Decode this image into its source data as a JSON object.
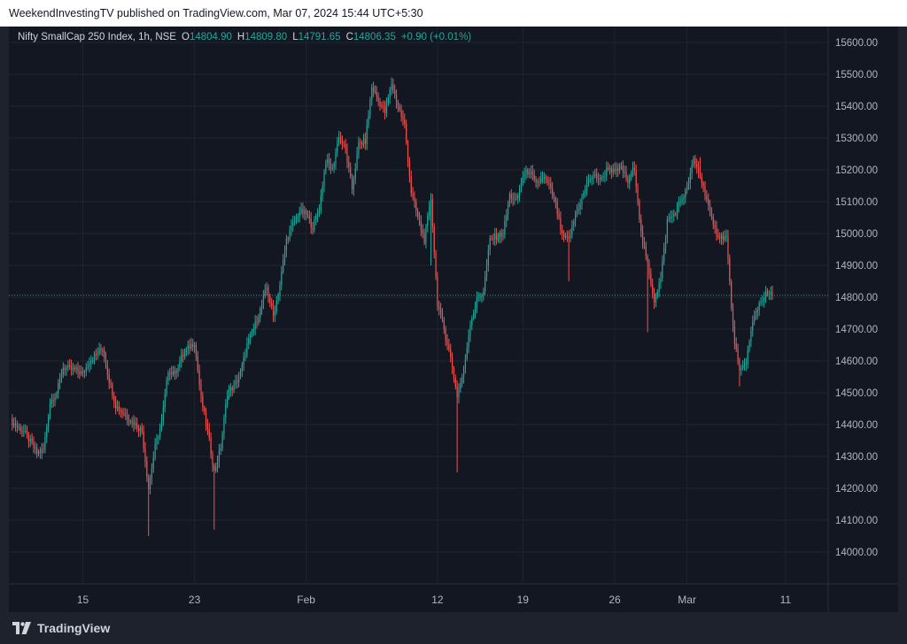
{
  "header": {
    "published_text": "WeekendInvestingTV published on TradingView.com, Mar 07, 2024 15:44 UTC+5:30"
  },
  "legend": {
    "symbol": "Nifty SmallCap 250 Index, 1h, NSE",
    "o_label": "O",
    "o_value": "14804.90",
    "h_label": "H",
    "h_value": "14809.80",
    "l_label": "L",
    "l_value": "14791.65",
    "c_label": "C",
    "c_value": "14806.35",
    "change": "+0.90 (+0.01%)"
  },
  "footer": {
    "brand": "TradingView",
    "logo_icon": "tradingview-logo-icon"
  },
  "colors": {
    "up": "#26a69a",
    "down": "#ef5350",
    "background": "#131722",
    "grid": "#1f2430",
    "price_line": "#26a69a"
  },
  "chart_data": {
    "type": "candlestick",
    "title": "Nifty SmallCap 250 Index, 1h, NSE",
    "ylim": [
      13900,
      15650
    ],
    "y_ticks": [
      "15600.00",
      "15500.00",
      "15400.00",
      "15300.00",
      "15200.00",
      "15100.00",
      "15000.00",
      "14900.00",
      "14800.00",
      "14700.00",
      "14600.00",
      "14500.00",
      "14400.00",
      "14300.00",
      "14200.00",
      "14100.00",
      "14000.00"
    ],
    "x_ticks": [
      {
        "label": "15",
        "index": 11
      },
      {
        "label": "23",
        "index": 28
      },
      {
        "label": "Feb",
        "index": 45
      },
      {
        "label": "12",
        "index": 65
      },
      {
        "label": "19",
        "index": 78
      },
      {
        "label": "26",
        "index": 92
      },
      {
        "label": "Mar",
        "index": 103
      },
      {
        "label": "11",
        "index": 118
      }
    ],
    "last_price": 14806.35,
    "grid": true,
    "anchors": [
      [
        0,
        14410
      ],
      [
        2,
        14380
      ],
      [
        4,
        14310
      ],
      [
        5,
        14320
      ],
      [
        6,
        14470
      ],
      [
        7,
        14500
      ],
      [
        8,
        14580
      ],
      [
        10,
        14570
      ],
      [
        11,
        14560
      ],
      [
        12,
        14600
      ],
      [
        14,
        14640
      ],
      [
        15,
        14540
      ],
      [
        16,
        14460
      ],
      [
        18,
        14420
      ],
      [
        20,
        14380
      ],
      [
        21,
        14200
      ],
      [
        22,
        14330
      ],
      [
        23,
        14410
      ],
      [
        24,
        14570
      ],
      [
        25,
        14560
      ],
      [
        26,
        14610
      ],
      [
        27,
        14640
      ],
      [
        28,
        14660
      ],
      [
        29,
        14480
      ],
      [
        30,
        14380
      ],
      [
        31,
        14250
      ],
      [
        32,
        14330
      ],
      [
        33,
        14500
      ],
      [
        34,
        14520
      ],
      [
        35,
        14560
      ],
      [
        36,
        14650
      ],
      [
        37,
        14700
      ],
      [
        38,
        14760
      ],
      [
        39,
        14830
      ],
      [
        40,
        14740
      ],
      [
        41,
        14840
      ],
      [
        42,
        14980
      ],
      [
        43,
        15030
      ],
      [
        44,
        15070
      ],
      [
        45,
        15060
      ],
      [
        46,
        15020
      ],
      [
        47,
        15080
      ],
      [
        48,
        15230
      ],
      [
        49,
        15200
      ],
      [
        50,
        15310
      ],
      [
        51,
        15260
      ],
      [
        52,
        15140
      ],
      [
        53,
        15280
      ],
      [
        54,
        15290
      ],
      [
        55,
        15460
      ],
      [
        56,
        15420
      ],
      [
        57,
        15380
      ],
      [
        58,
        15470
      ],
      [
        59,
        15400
      ],
      [
        60,
        15340
      ],
      [
        61,
        15130
      ],
      [
        62,
        15050
      ],
      [
        63,
        14980
      ],
      [
        64,
        15110
      ],
      [
        65,
        14780
      ],
      [
        66,
        14700
      ],
      [
        67,
        14610
      ],
      [
        68,
        14490
      ],
      [
        69,
        14570
      ],
      [
        70,
        14720
      ],
      [
        71,
        14790
      ],
      [
        72,
        14820
      ],
      [
        73,
        14980
      ],
      [
        74,
        14990
      ],
      [
        75,
        15000
      ],
      [
        76,
        15120
      ],
      [
        77,
        15100
      ],
      [
        78,
        15180
      ],
      [
        79,
        15200
      ],
      [
        80,
        15150
      ],
      [
        81,
        15180
      ],
      [
        82,
        15150
      ],
      [
        83,
        15090
      ],
      [
        84,
        14990
      ],
      [
        85,
        14980
      ],
      [
        86,
        15060
      ],
      [
        87,
        15110
      ],
      [
        88,
        15170
      ],
      [
        89,
        15180
      ],
      [
        90,
        15170
      ],
      [
        91,
        15210
      ],
      [
        92,
        15190
      ],
      [
        93,
        15210
      ],
      [
        94,
        15160
      ],
      [
        95,
        15210
      ],
      [
        96,
        15000
      ],
      [
        97,
        14900
      ],
      [
        98,
        14790
      ],
      [
        99,
        14860
      ],
      [
        100,
        15040
      ],
      [
        101,
        15060
      ],
      [
        102,
        15100
      ],
      [
        103,
        15140
      ],
      [
        104,
        15230
      ],
      [
        105,
        15180
      ],
      [
        106,
        15110
      ],
      [
        107,
        15020
      ],
      [
        108,
        14990
      ],
      [
        109,
        14990
      ],
      [
        110,
        14700
      ],
      [
        111,
        14560
      ],
      [
        112,
        14600
      ],
      [
        113,
        14720
      ],
      [
        114,
        14780
      ],
      [
        115,
        14810
      ],
      [
        116,
        14806
      ]
    ],
    "wick_extremes": [
      {
        "index": 21,
        "low": 14050
      },
      {
        "index": 31,
        "low": 14070
      },
      {
        "index": 58,
        "high": 15490
      },
      {
        "index": 64,
        "low": 14900
      },
      {
        "index": 68,
        "low": 14250
      },
      {
        "index": 85,
        "low": 14850
      },
      {
        "index": 97,
        "low": 14690
      },
      {
        "index": 105,
        "high": 15240
      },
      {
        "index": 111,
        "low": 14520
      }
    ]
  }
}
